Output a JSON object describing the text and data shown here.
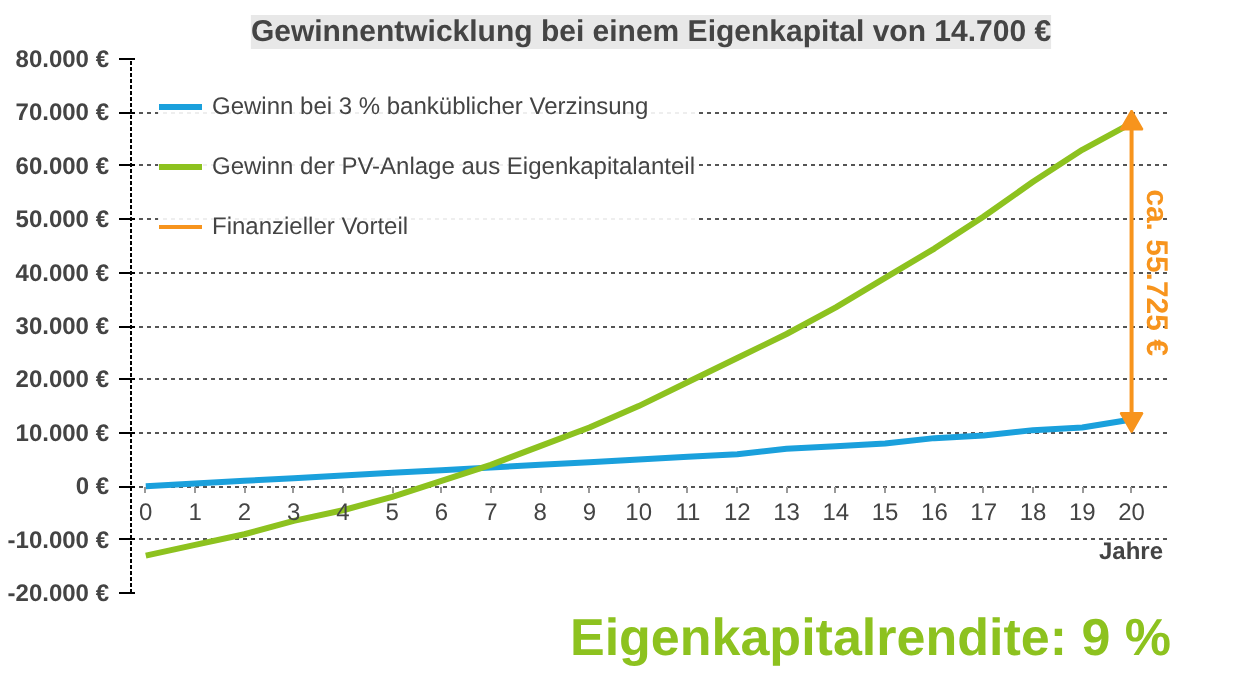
{
  "chart_data": {
    "type": "line",
    "title": "Gewinnentwicklung bei einem Eigenkapital von 14.700 €",
    "xlabel": "Jahre",
    "x": [
      0,
      1,
      2,
      3,
      4,
      5,
      6,
      7,
      8,
      9,
      10,
      11,
      12,
      13,
      14,
      15,
      16,
      17,
      18,
      19,
      20
    ],
    "series": [
      {
        "name": "Gewinn bei 3 % banküblicher Verzinsung",
        "color": "#1aa0dc",
        "values": [
          0,
          500,
          1000,
          1500,
          2000,
          2500,
          3000,
          3500,
          4000,
          4500,
          5000,
          5500,
          6000,
          7000,
          7500,
          8000,
          9000,
          9500,
          10500,
          11000,
          12500
        ]
      },
      {
        "name": "Gewinn der PV-Anlage aus Eigenkapitalanteil",
        "color": "#8dc21f",
        "values": [
          -13000,
          -11000,
          -9000,
          -6500,
          -4500,
          -2000,
          1000,
          4000,
          7500,
          11000,
          15000,
          19500,
          24000,
          28500,
          33500,
          39000,
          44500,
          50500,
          57000,
          63000,
          68000
        ]
      },
      {
        "name": "Finanzieller Vorteil",
        "color": "#f7941d",
        "x": [
          20,
          20
        ],
        "values": [
          12500,
          68000
        ],
        "marker": "triangle"
      }
    ],
    "annotations": [
      {
        "text": "ca. 55.725 €",
        "x": 20,
        "y": 40000
      },
      "Eigenkapitalrendite: 9 %"
    ],
    "xlim": [
      -0.3,
      20.8
    ],
    "ylim": [
      -20000,
      80000
    ],
    "xticks": [
      0,
      1,
      2,
      3,
      4,
      5,
      6,
      7,
      8,
      9,
      10,
      11,
      12,
      13,
      14,
      15,
      16,
      17,
      18,
      19,
      20
    ],
    "yticks": [
      {
        "value": -20000,
        "label": "-20.000 €"
      },
      {
        "value": -10000,
        "label": "-10.000 €"
      },
      {
        "value": 0,
        "label": "0 €"
      },
      {
        "value": 10000,
        "label": "10.000 €"
      },
      {
        "value": 20000,
        "label": "20.000 €"
      },
      {
        "value": 30000,
        "label": "30.000 €"
      },
      {
        "value": 40000,
        "label": "40.000 €"
      },
      {
        "value": 50000,
        "label": "50.000 €"
      },
      {
        "value": 60000,
        "label": "60.000 €"
      },
      {
        "value": 70000,
        "label": "70.000 €"
      },
      {
        "value": 80000,
        "label": "80.000 €"
      }
    ],
    "grid": "y",
    "legend": "top left",
    "marker": "none",
    "line_style": "solid"
  }
}
